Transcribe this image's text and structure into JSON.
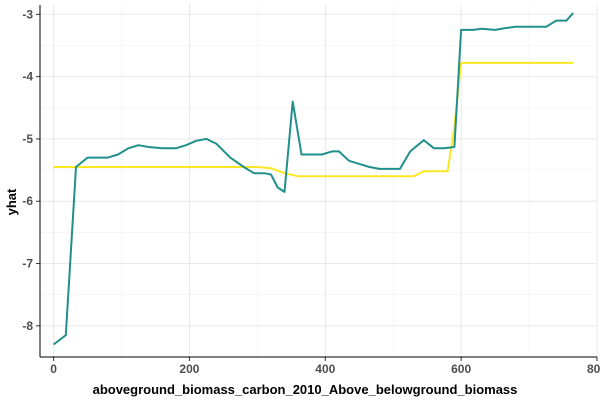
{
  "chart_data": {
    "type": "line",
    "title": "",
    "xlabel": "aboveground_biomass_carbon_2010_Above_belowground_biomass",
    "ylabel": "yhat",
    "xlim": [
      -20,
      800
    ],
    "ylim": [
      -8.5,
      -2.85
    ],
    "x_ticks": [
      0,
      200,
      400,
      600,
      800
    ],
    "x_tick_labels": [
      "0",
      "200",
      "400",
      "600",
      "800"
    ],
    "y_ticks": [
      -8,
      -7,
      -6,
      -5,
      -4,
      -3
    ],
    "y_tick_labels": [
      "-8",
      "-7",
      "-6",
      "-5",
      "-4",
      "-3"
    ],
    "grid": true,
    "legend": "none",
    "series": [
      {
        "color": "#21908C",
        "x": [
          0,
          18,
          33,
          50,
          65,
          80,
          95,
          110,
          125,
          140,
          160,
          180,
          195,
          210,
          225,
          240,
          260,
          280,
          295,
          310,
          320,
          330,
          340,
          352,
          365,
          380,
          395,
          410,
          420,
          435,
          450,
          465,
          480,
          495,
          510,
          525,
          545,
          560,
          575,
          590,
          600,
          618,
          630,
          650,
          665,
          680,
          695,
          710,
          725,
          740,
          755,
          765
        ],
        "y": [
          -8.3,
          -8.15,
          -5.45,
          -5.3,
          -5.3,
          -5.3,
          -5.25,
          -5.15,
          -5.1,
          -5.13,
          -5.15,
          -5.15,
          -5.1,
          -5.03,
          -5.0,
          -5.08,
          -5.3,
          -5.45,
          -5.55,
          -5.55,
          -5.57,
          -5.78,
          -5.85,
          -4.4,
          -5.25,
          -5.25,
          -5.25,
          -5.2,
          -5.2,
          -5.35,
          -5.4,
          -5.45,
          -5.48,
          -5.48,
          -5.48,
          -5.2,
          -5.02,
          -5.15,
          -5.15,
          -5.13,
          -3.25,
          -3.25,
          -3.23,
          -3.25,
          -3.22,
          -3.2,
          -3.2,
          -3.2,
          -3.2,
          -3.1,
          -3.1,
          -2.98
        ]
      },
      {
        "color": "#FDE725",
        "x": [
          0,
          100,
          200,
          300,
          320,
          340,
          360,
          400,
          450,
          500,
          530,
          545,
          560,
          580,
          590,
          600,
          650,
          700,
          765
        ],
        "y": [
          -5.45,
          -5.45,
          -5.45,
          -5.45,
          -5.47,
          -5.55,
          -5.6,
          -5.6,
          -5.6,
          -5.6,
          -5.6,
          -5.52,
          -5.52,
          -5.52,
          -4.8,
          -3.78,
          -3.78,
          -3.78,
          -3.78
        ]
      }
    ]
  }
}
